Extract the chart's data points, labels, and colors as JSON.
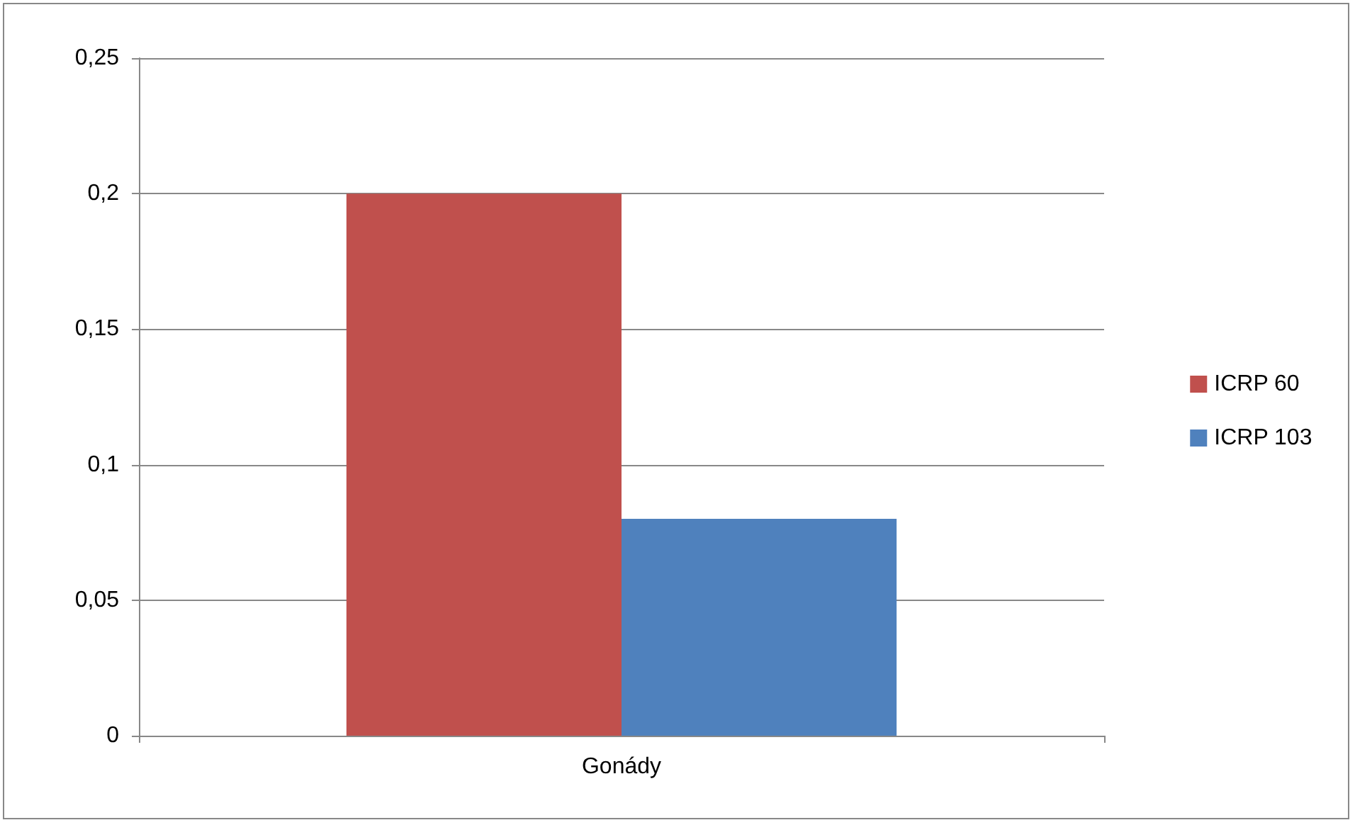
{
  "chart_data": {
    "type": "bar",
    "categories": [
      "Gonády"
    ],
    "series": [
      {
        "name": "ICRP 60",
        "color": "#c0504d",
        "values": [
          0.2
        ]
      },
      {
        "name": "ICRP 103",
        "color": "#4f81bd",
        "values": [
          0.08
        ]
      }
    ],
    "ylim": [
      0,
      0.25
    ],
    "yticks": [
      {
        "value": 0,
        "label": "0"
      },
      {
        "value": 0.05,
        "label": "0,05"
      },
      {
        "value": 0.1,
        "label": "0,1"
      },
      {
        "value": 0.15,
        "label": "0,15"
      },
      {
        "value": 0.2,
        "label": "0,2"
      },
      {
        "value": 0.25,
        "label": "0,25"
      }
    ],
    "grid": "y",
    "legend": "right"
  }
}
